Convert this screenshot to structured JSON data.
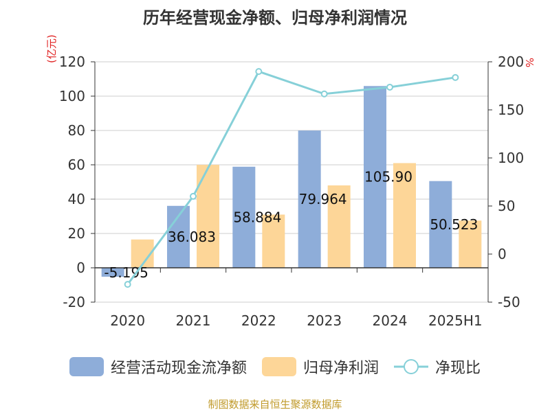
{
  "title": "历年经营现金净额、归母净利润情况",
  "left_axis_unit": "(亿元)",
  "right_axis_unit": "%",
  "source": "制图数据来自恒生聚源数据库",
  "colors": {
    "cash_flow": "#8eadd9",
    "net_profit": "#fdd698",
    "ratio": "#86d0d8",
    "grid": "#cccccc",
    "axis": "#333333",
    "text": "#333333",
    "unit": "#e02020"
  },
  "chart_data": {
    "type": "bar",
    "categories": [
      "2020",
      "2021",
      "2022",
      "2023",
      "2024",
      "2025H1"
    ],
    "series": [
      {
        "name": "经营活动现金流净额",
        "type": "bar",
        "axis": "left",
        "values": [
          -5.195,
          36.083,
          58.884,
          79.964,
          105.9,
          50.523
        ],
        "labels": [
          "-5.195",
          "36.083",
          "58.884",
          "79.964",
          "105.90",
          "50.523"
        ]
      },
      {
        "name": "归母净利润",
        "type": "bar",
        "axis": "left",
        "values": [
          16.5,
          60.0,
          31.0,
          48.0,
          61.0,
          27.5
        ]
      },
      {
        "name": "净现比",
        "type": "line",
        "axis": "right",
        "values": [
          -31.5,
          60.1,
          189.9,
          166.6,
          173.6,
          183.7
        ]
      }
    ],
    "left_axis": {
      "ylim": [
        -20,
        120
      ],
      "ticks": [
        "-20",
        "0",
        "20",
        "40",
        "60",
        "80",
        "100",
        "120"
      ]
    },
    "right_axis": {
      "ylim": [
        -50,
        200
      ],
      "ticks": [
        "-50",
        "0",
        "50",
        "100",
        "150",
        "200"
      ]
    },
    "grid": true,
    "legend_position": "bottom"
  }
}
